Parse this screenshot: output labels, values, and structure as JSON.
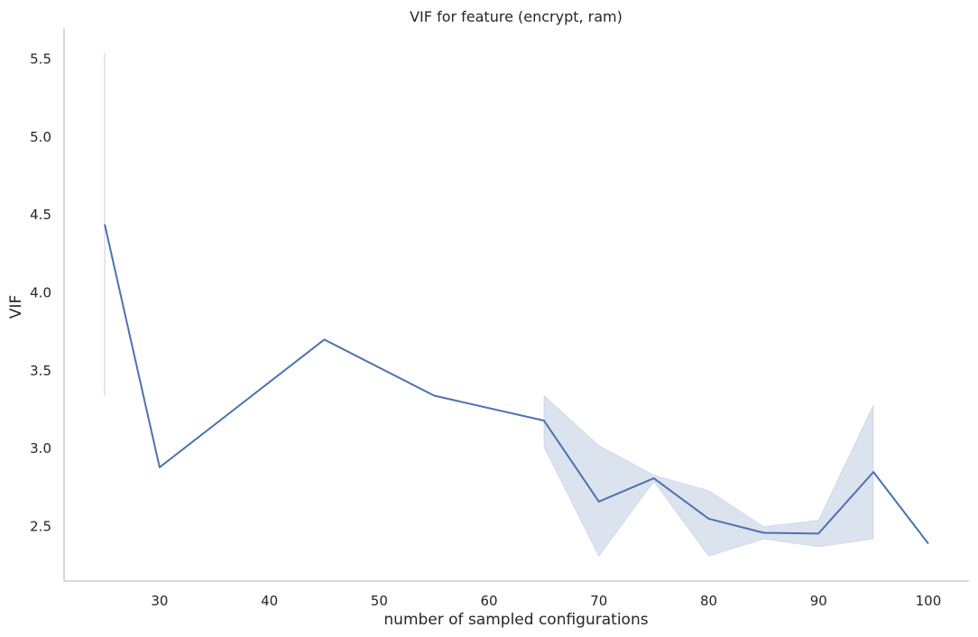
{
  "chart_data": {
    "type": "line",
    "title": "VIF for feature (encrypt, ram)",
    "xlabel": "number of sampled configurations",
    "ylabel": "VIF",
    "xlim": [
      21.3,
      103.7
    ],
    "ylim": [
      2.15,
      5.7
    ],
    "xticks": [
      "30",
      "40",
      "50",
      "60",
      "70",
      "80",
      "90",
      "100"
    ],
    "yticks": [
      "2.5",
      "3.0",
      "3.5",
      "4.0",
      "4.5",
      "5.0",
      "5.5"
    ],
    "grid": false,
    "colors": {
      "line": "#4c72b0",
      "band": "#4c72b0",
      "axis": "#cccccc"
    },
    "series": [
      {
        "x": [
          25,
          30,
          45,
          55,
          65,
          70,
          75,
          80,
          85,
          90,
          95,
          100
        ],
        "y": [
          4.44,
          2.88,
          3.7,
          3.34,
          3.18,
          2.66,
          2.81,
          2.55,
          2.46,
          2.455,
          2.85,
          2.39
        ]
      }
    ],
    "confidence_band": {
      "x": [
        25,
        65,
        70,
        75,
        80,
        85,
        90,
        95
      ],
      "low": [
        3.34,
        3.01,
        2.31,
        2.79,
        2.31,
        2.42,
        2.37,
        2.42
      ],
      "high": [
        5.54,
        3.34,
        3.02,
        2.83,
        2.73,
        2.5,
        2.54,
        3.28
      ]
    }
  }
}
